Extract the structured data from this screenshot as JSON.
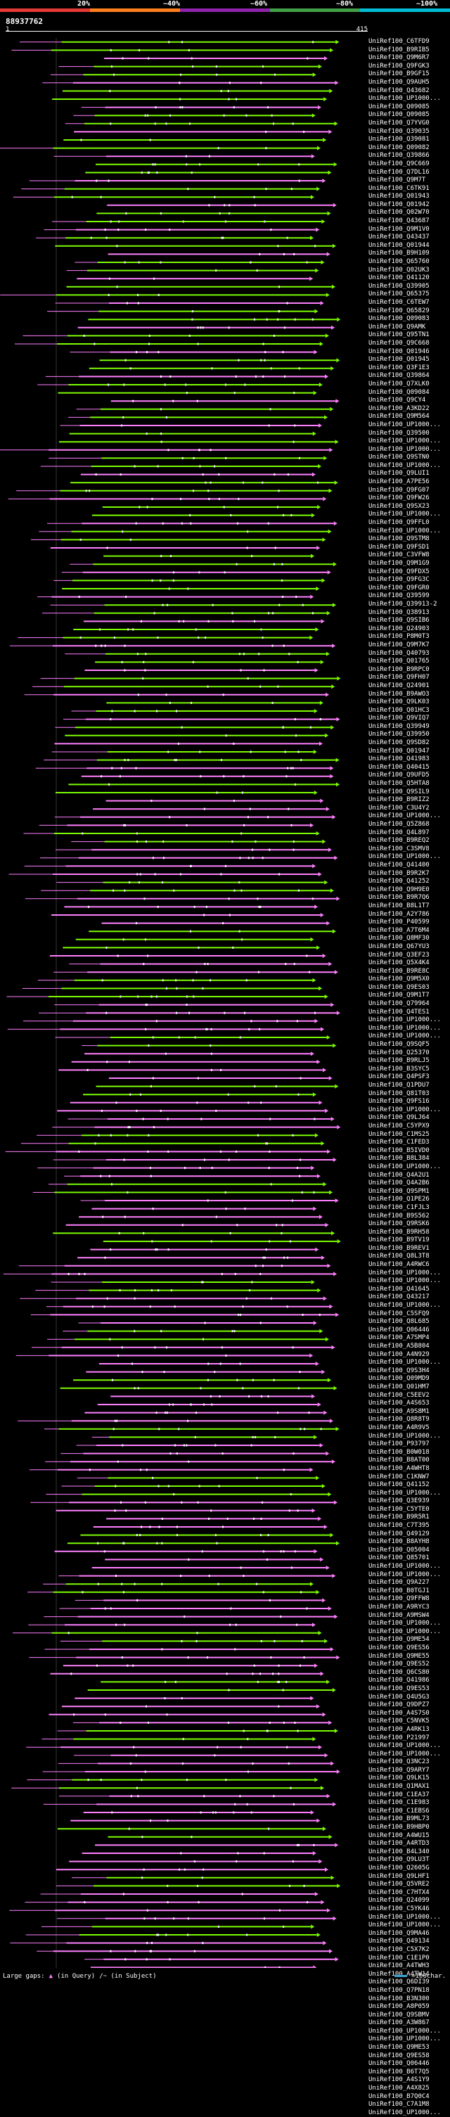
{
  "scale": {
    "labels": [
      "20%",
      "~40%",
      "~60%",
      "~80%",
      "~100%"
    ],
    "colors": [
      "#e53935",
      "#ff7f1e",
      "#8e24aa",
      "#43a047",
      "#00bcd4"
    ]
  },
  "query": {
    "id": "88937762",
    "start": "1",
    "end": "415"
  },
  "colors": {
    "low": "#ff7fff",
    "high": "#7cfc00",
    "gap": "#ffffff",
    "background": "#000000"
  },
  "hits": [
    "UniRef100_C6TFD9",
    "UniRef100_B9RIB5",
    "UniRef100_Q9M6R7",
    "UniRef100_Q9FGK3",
    "UniRef100_B9GF15",
    "UniRef100_Q9AUH5",
    "UniRef100_Q43682",
    "UniRef100_UP1000...",
    "UniRef100_Q09085",
    "UniRef100_Q09085",
    "UniRef100_Q7YVG0",
    "UniRef100_Q39035",
    "UniRef100_Q39081",
    "UniRef100_Q09082",
    "UniRef100_Q39866",
    "UniRef100_Q9C669",
    "UniRef100_Q7DL16",
    "UniRef100_Q9M7T",
    "UniRef100_C6TK91",
    "UniRef100_Q01943",
    "UniRef100_Q01942",
    "UniRef100_Q02W70",
    "UniRef100_Q43687",
    "UniRef100_Q9M1V0",
    "UniRef100_Q43437",
    "UniRef100_Q01944",
    "UniRef100_B9H109",
    "UniRef100_Q65760",
    "UniRef100_Q02UK3",
    "UniRef100_Q41120",
    "UniRef100_Q39905",
    "UniRef100_Q65375",
    "UniRef100_C6TEW7",
    "UniRef100_Q65829",
    "UniRef100_Q09083",
    "UniRef100_Q9AMK",
    "UniRef100_Q95TN1",
    "UniRef100_Q9C668",
    "UniRef100_Q01946",
    "UniRef100_Q01945",
    "UniRef100_Q3F1E3",
    "UniRef100_Q39864",
    "UniRef100_Q7XLK0",
    "UniRef100_Q09084",
    "UniRef100_Q9CY4",
    "UniRef100_A3KD22",
    "UniRef100_Q9M564",
    "UniRef100_UP1000...",
    "UniRef100_Q39500",
    "UniRef100_UP1000...",
    "UniRef100_UP1000...",
    "UniRef100_Q9STN0",
    "UniRef100_UP1000...",
    "UniRef100_Q9LUI1",
    "UniRef100_A7PE56",
    "UniRef100_Q9FG07",
    "UniRef100_Q9FW26",
    "UniRef100_Q9SX23",
    "UniRef100_UP1000...",
    "UniRef100_Q9FFL0",
    "UniRef100_UP1000...",
    "UniRef100_Q9STM8",
    "UniRef100_Q9FSD1",
    "UniRef100_C3VFW8",
    "UniRef100_Q9M1G9",
    "UniRef100_Q9FDX5",
    "UniRef100_Q9FG3C",
    "UniRef100_Q9FGR0",
    "UniRef100_Q39599",
    "UniRef100_Q39913-2",
    "UniRef100_Q38913",
    "UniRef100_Q9SIB6",
    "UniRef100_Q24903",
    "UniRef100_P8M0T3",
    "UniRef100_Q9M7K7",
    "UniRef100_Q40793",
    "UniRef100_Q01765",
    "UniRef100_B9RPC0",
    "UniRef100_Q9FH07",
    "UniRef100_Q24901",
    "UniRef100_B9AWO3",
    "UniRef100_Q9LK03",
    "UniRef100_Q01HC3",
    "UniRef100_Q9VIQ7",
    "UniRef100_Q39949",
    "UniRef100_Q39950",
    "UniRef100_Q9SD82",
    "UniRef100_Q01947",
    "UniRef100_Q41983",
    "UniRef100_Q40415",
    "UniRef100_Q9UFD5",
    "UniRef100_Q5HTA8",
    "UniRef100_Q9SIL9",
    "UniRef100_B9RIZ2",
    "UniRef100_C3U4Y2",
    "UniRef100_UP1000...",
    "UniRef100_Q5Z868",
    "UniRef100_Q4L897",
    "UniRef100_B9REQ2",
    "UniRef100_C3SMV8",
    "UniRef100_UP1000...",
    "UniRef100_Q41400",
    "UniRef100_B9R2K7",
    "UniRef100_Q41252",
    "UniRef100_Q9H9E0",
    "UniRef100_B9R7Q6",
    "UniRef100_B8L1T7",
    "UniRef100_A2Y786",
    "UniRef100_P40599",
    "UniRef100_A7T6M4",
    "UniRef100_Q8MF30",
    "UniRef100_Q67YU3",
    "UniRef100_Q3EF23",
    "UniRef100_Q5X4K4",
    "UniRef100_B9RE8C",
    "UniRef100_Q9M5X0",
    "UniRef100_Q9ES03",
    "UniRef100_Q9M1T7",
    "UniRef100_Q79964",
    "UniRef100_Q4TES1",
    "UniRef100_UP1000...",
    "UniRef100_UP1000...",
    "UniRef100_UP1000...",
    "UniRef100_Q9SQF5",
    "UniRef100_Q25370",
    "UniRef100_B9RLJ5",
    "UniRef100_B3SYC5",
    "UniRef100_Q4PSF3",
    "UniRef100_Q1PDU7",
    "UniRef100_Q81T03",
    "UniRef100_Q9FS16",
    "UniRef100_UP1000...",
    "UniRef100_Q9LJ64",
    "UniRef100_C5YPX9",
    "UniRef100_C1MS25",
    "UniRef100_C1FED3",
    "UniRef100_B5IVD0",
    "UniRef100_B8L384",
    "UniRef100_UP1000...",
    "UniRef100_Q4A2U1",
    "UniRef100_Q4A2B6",
    "UniRef100_Q9SPM1",
    "UniRef100_Q1PE26",
    "UniRef100_C1FJL3",
    "UniRef100_B9S562",
    "UniRef100_Q9RSK6",
    "UniRef100_B9RH58",
    "UniRef100_B9TV19",
    "UniRef100_B9REV1",
    "UniRef100_Q8L3T8",
    "UniRef100_A4RWC6",
    "UniRef100_UP1000...",
    "UniRef100_UP1000...",
    "UniRef100_Q41645",
    "UniRef100_Q43217",
    "UniRef100_UP1000...",
    "UniRef100_C5SFQ9",
    "UniRef100_Q8L685",
    "UniRef100_Q06446",
    "UniRef100_A7SMP4",
    "UniRef100_A5B804",
    "UniRef100_A4N929",
    "UniRef100_UP1000...",
    "UniRef100_Q9S3H4",
    "UniRef100_Q09MD9",
    "UniRef100_Q01HM7",
    "UniRef100_C5EEV2",
    "UniRef100_A4S653",
    "UniRef100_A9S8M1",
    "UniRef100_Q8R8T9",
    "UniRef100_A4R9V5",
    "UniRef100_UP1000...",
    "UniRef100_P93797",
    "UniRef100_B0W018",
    "UniRef100_B8AT00",
    "UniRef100_A4WHT8",
    "UniRef100_C1KNW7",
    "UniRef100_Q41152",
    "UniRef100_UP1000...",
    "UniRef100_Q3E939",
    "UniRef100_C5YTE0",
    "UniRef100_B9R5R1",
    "UniRef100_C7T395",
    "UniRef100_Q49129",
    "UniRef100_B8AYH8",
    "UniRef100_Q05004",
    "UniRef100_Q85701",
    "UniRef100_UP1000...",
    "UniRef100_UP1000...",
    "UniRef100_Q9A227",
    "UniRef100_B0TGJ1",
    "UniRef100_Q9FFW8",
    "UniRef100_A9RYC3",
    "UniRef100_A9MSW4",
    "UniRef100_UP1000...",
    "UniRef100_UP1000...",
    "UniRef100_Q9ME54",
    "UniRef100_Q9ES56",
    "UniRef100_Q9ME55",
    "UniRef100_Q9ES52",
    "UniRef100_Q6CS80",
    "UniRef100_Q41986",
    "UniRef100_Q9ES53",
    "UniRef100_Q4U5G3",
    "UniRef100_Q9DPZ7",
    "UniRef100_A4S7S0",
    "UniRef100_C5NVK5",
    "UniRef100_A4RK13",
    "UniRef100_P21997",
    "UniRef100_UP1000...",
    "UniRef100_UP1000...",
    "UniRef100_Q3NC23",
    "UniRef100_Q9ARY7",
    "UniRef100_Q9LK15",
    "UniRef100_Q1MAX1",
    "UniRef100_C1EA37",
    "UniRef100_C1E983",
    "UniRef100_C1EBS6",
    "UniRef100_B9ML73",
    "UniRef100_B9HBP0",
    "UniRef100_A4WU15",
    "UniRef100_A4RTD3",
    "UniRef100_B4L340",
    "UniRef100_Q9LU3T",
    "UniRef100_Q2605G",
    "UniRef100_Q9LHF1",
    "UniRef100_Q5VRE2",
    "UniRef100_C7HTX4",
    "UniRef100_Q24099",
    "UniRef100_C5YK46",
    "UniRef100_UP1000...",
    "UniRef100_UP1000...",
    "UniRef100_Q9MA46",
    "UniRef100_Q49134",
    "UniRef100_C5X7K2",
    "UniRef100_C1E1P0",
    "UniRef100_A4TWH3",
    "UniRef100_A4TW14",
    "UniRef100_Q6DI39",
    "UniRef100_Q7PN18",
    "UniRef100_B3N300",
    "UniRef100_A8P059",
    "UniRef100_Q9SBMV",
    "UniRef100_A3W867",
    "UniRef100_UP1000...",
    "UniRef100_UP1000...",
    "UniRef100_Q9ME53",
    "UniRef100_Q9ES58",
    "UniRef100_Q06446",
    "UniRef100_B6T7Q5",
    "UniRef100_A4S1Y9",
    "UniRef100_A4X825",
    "UniRef100_B7Q0C4",
    "UniRef100_C7A1M8",
    "UniRef100_UP1000..."
  ],
  "footer": {
    "large_gaps": "Large gaps:",
    "query_gap": "(in Query)",
    "subject_gap": "/~ (in Subject)",
    "scale_note": "=100char."
  }
}
